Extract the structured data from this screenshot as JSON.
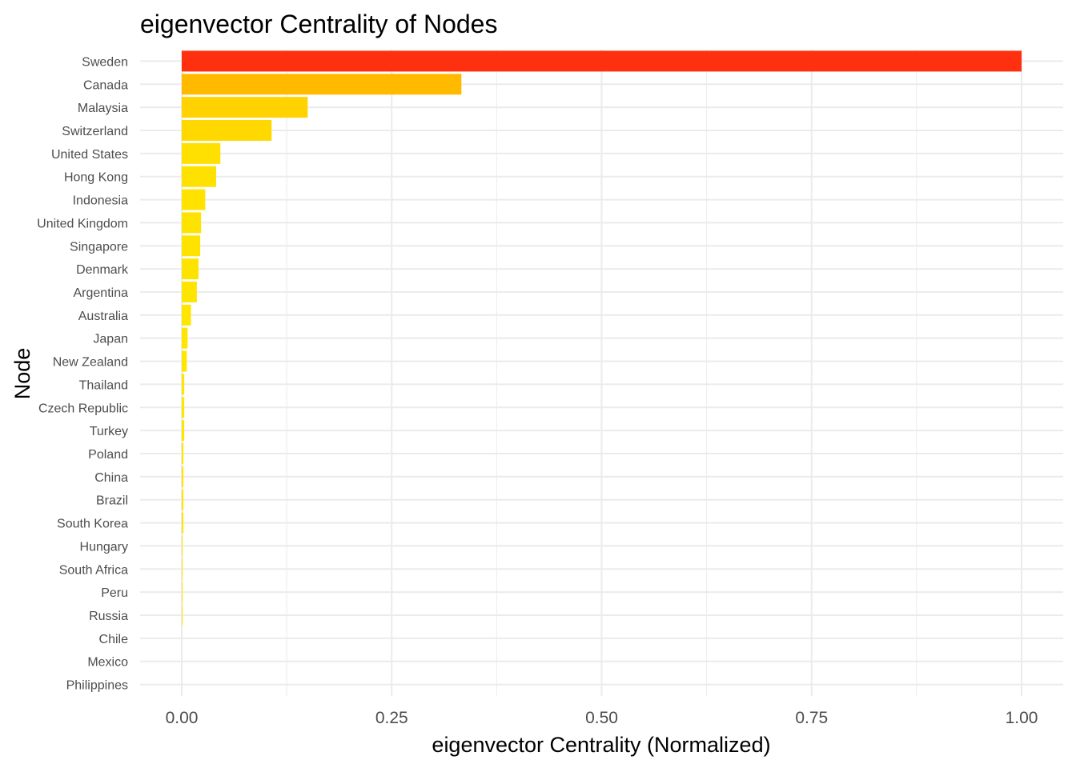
{
  "chart_data": {
    "type": "bar",
    "orientation": "horizontal",
    "title": "eigenvector Centrality of Nodes",
    "xlabel": "eigenvector Centrality (Normalized)",
    "ylabel": "Node",
    "xlim": [
      -0.05,
      1.05
    ],
    "xticks": [
      0,
      0.25,
      0.5,
      0.75,
      1
    ],
    "xtick_labels": [
      "0.00",
      "0.25",
      "0.50",
      "0.75",
      "1.00"
    ],
    "grid": true,
    "legend": "none",
    "color_scale": {
      "low": "#ffff00",
      "high": "#ff3010"
    },
    "categories": [
      "Sweden",
      "Canada",
      "Malaysia",
      "Switzerland",
      "United States",
      "Hong Kong",
      "Indonesia",
      "United Kingdom",
      "Singapore",
      "Denmark",
      "Argentina",
      "Australia",
      "Japan",
      "New Zealand",
      "Thailand",
      "Czech Republic",
      "Turkey",
      "Poland",
      "China",
      "Brazil",
      "South Korea",
      "Hungary",
      "South Africa",
      "Peru",
      "Russia",
      "Chile",
      "Mexico",
      "Philippines"
    ],
    "values": [
      1.0,
      0.333,
      0.15,
      0.107,
      0.046,
      0.041,
      0.028,
      0.023,
      0.022,
      0.02,
      0.018,
      0.011,
      0.007,
      0.006,
      0.003,
      0.003,
      0.003,
      0.002,
      0.002,
      0.002,
      0.002,
      0.001,
      0.001,
      0.001,
      0.001,
      0.0,
      0.0,
      0.0
    ]
  }
}
